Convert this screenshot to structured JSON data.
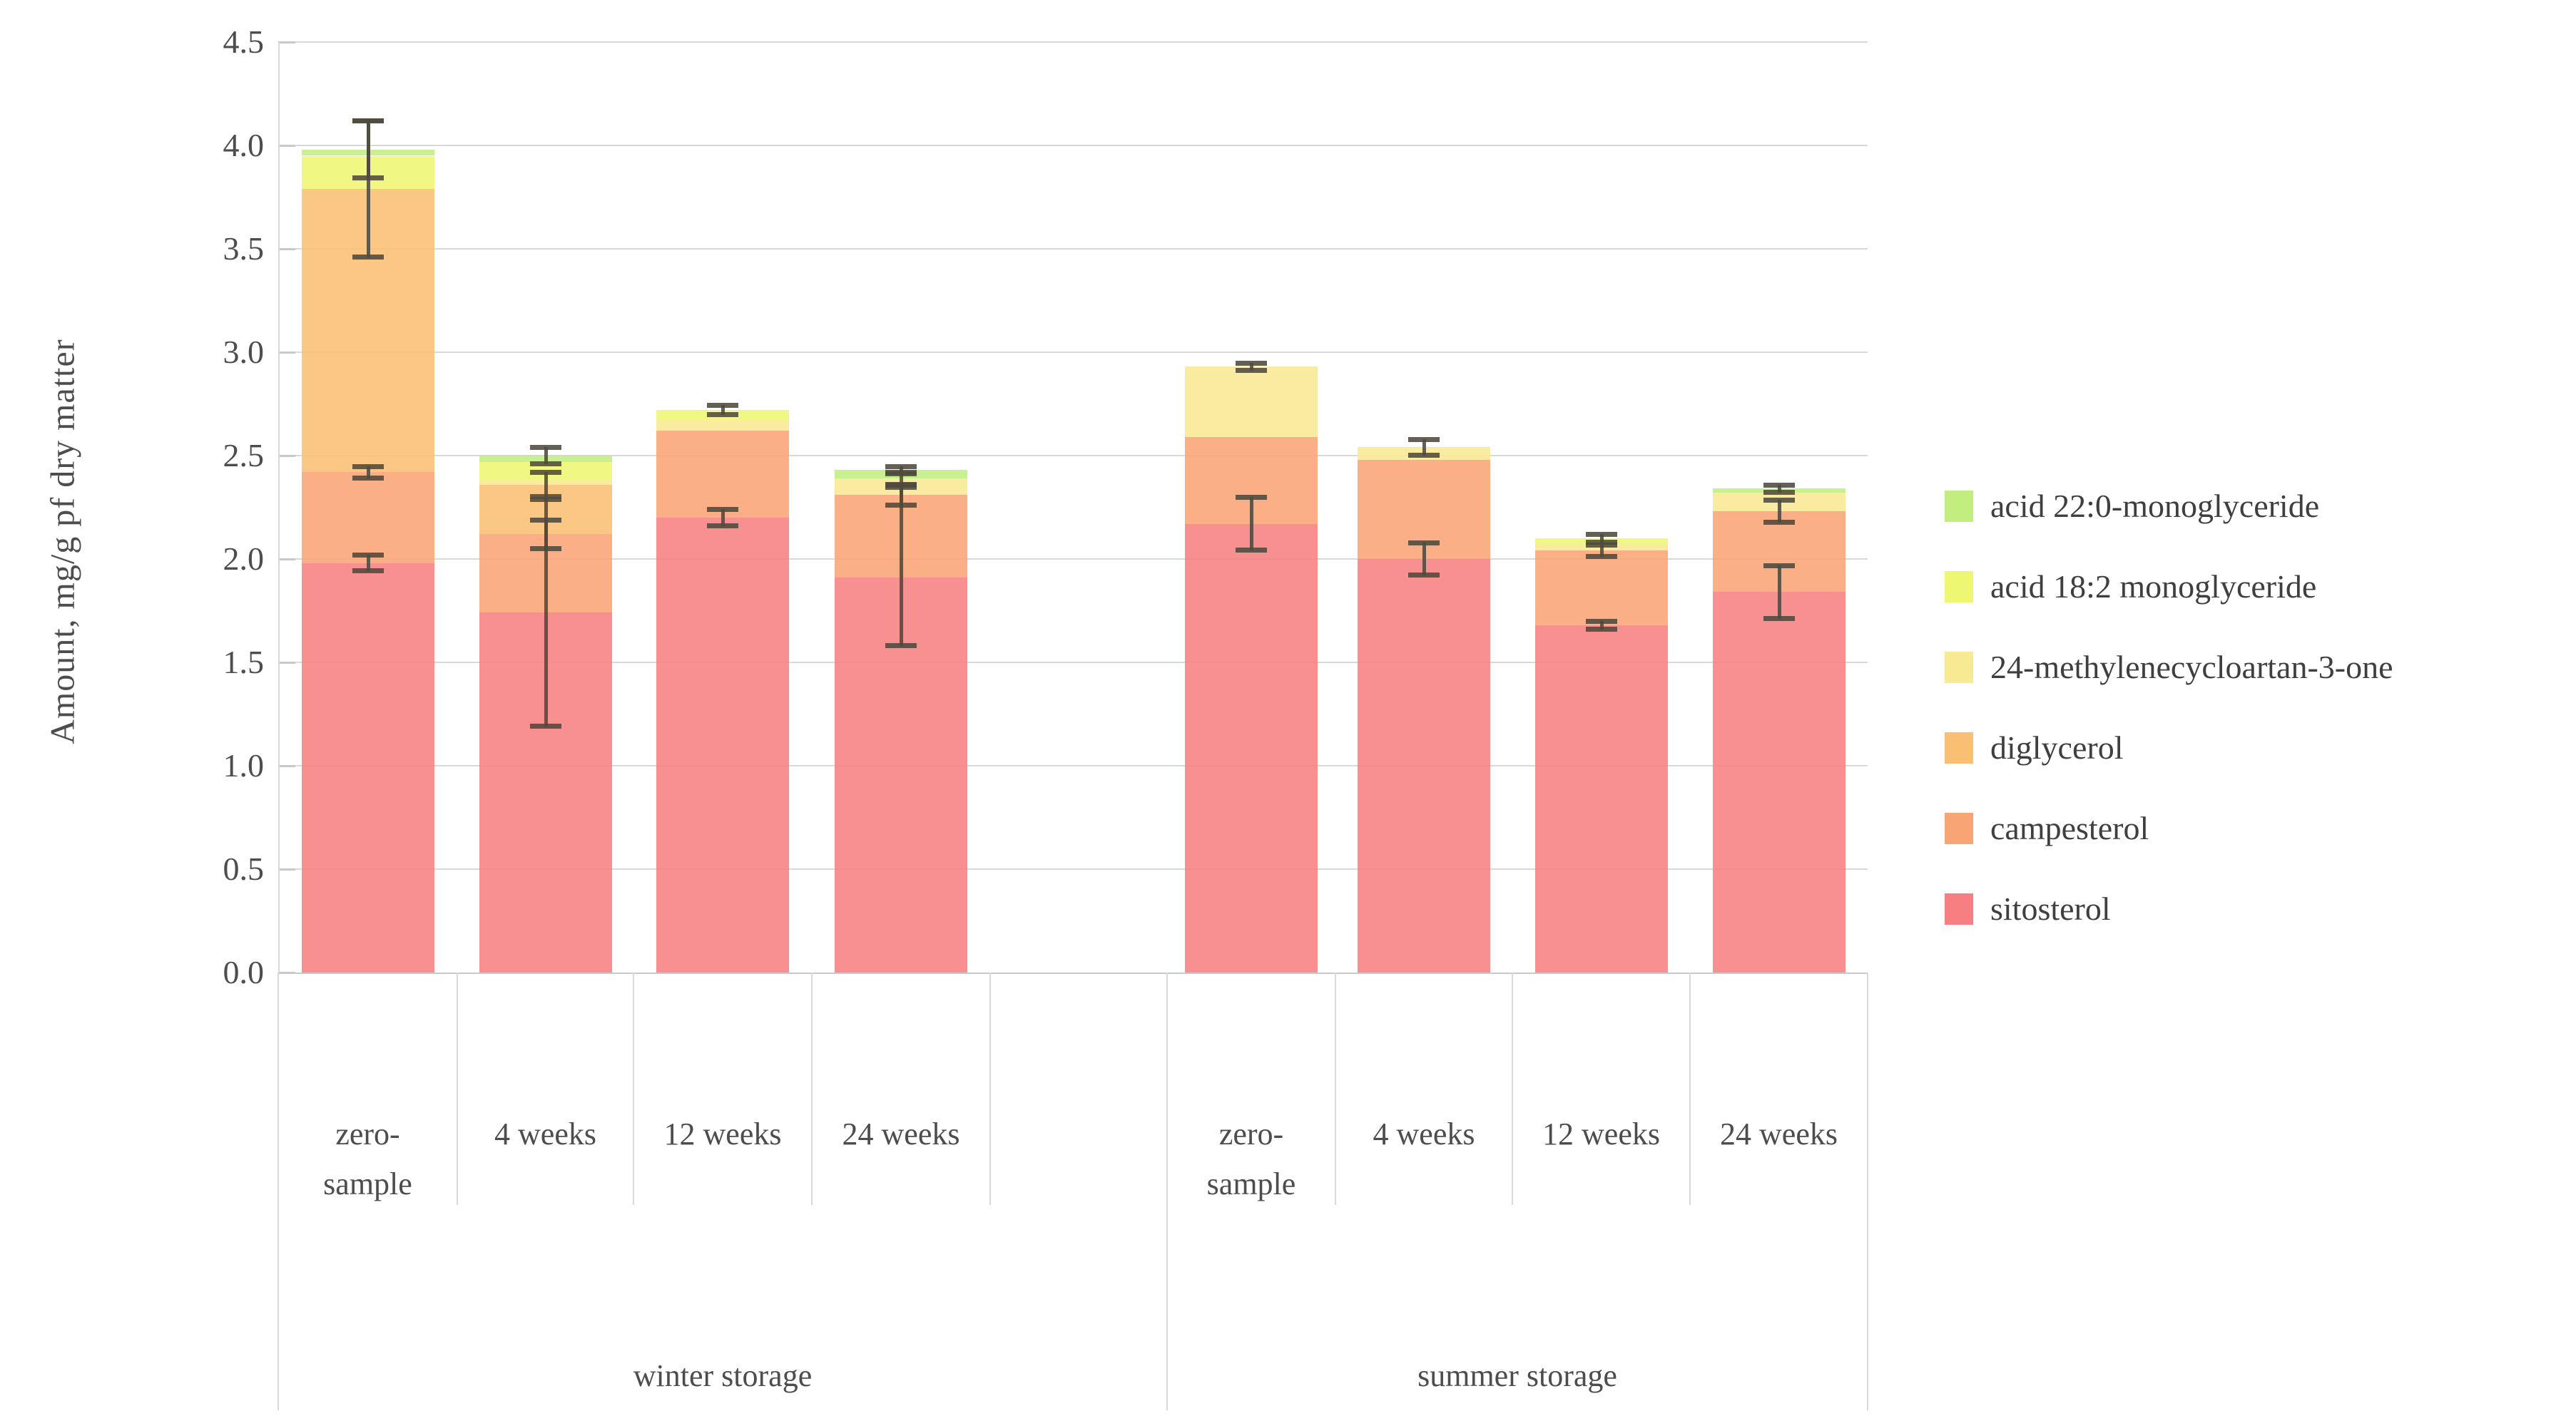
{
  "y_axis": {
    "title": "Amount, mg/g pf dry matter",
    "tick_labels": [
      "0.0",
      "0.5",
      "1.0",
      "1.5",
      "2.0",
      "2.5",
      "3.0",
      "3.5",
      "4.0",
      "4.5"
    ]
  },
  "chart_data": {
    "type": "bar",
    "stacked": true,
    "title": "",
    "xlabel": "",
    "ylabel": "Amount, mg/g pf dry matter",
    "ylim": [
      0,
      4.5
    ],
    "ytick_step": 0.5,
    "grid": true,
    "legend_position": "right",
    "stack_order_bottom_to_top": [
      "sitosterol",
      "campesterol",
      "diglycerol",
      "24-methylenecycloartan-3-one",
      "acid 18:2 monoglyceride",
      "acid 22:0-monoglyceride"
    ],
    "legend": [
      {
        "label": "acid 22:0-monoglyceride",
        "color": "#C2EE7F"
      },
      {
        "label": "acid 18:2 monoglyceride",
        "color": "#EEF772"
      },
      {
        "label": "24-methylenecycloartan-3-one",
        "color": "#F8E993"
      },
      {
        "label": "diglycerol",
        "color": "#FBBF74"
      },
      {
        "label": "campesterol",
        "color": "#F9A475"
      },
      {
        "label": "sitosterol",
        "color": "#F77F82"
      }
    ],
    "bar_fill_rgba": {
      "sitosterol": "rgba(247,127,130,0.88)",
      "campesterol": "rgba(249,164,117,0.88)",
      "diglycerol": "rgba(251,191,116,0.88)",
      "24-methylenecycloartan-3-one": "rgba(248,233,147,0.88)",
      "acid 18:2 monoglyceride": "rgba(238,247,114,0.88)",
      "acid 22:0-monoglyceride": "rgba(194,238,127,0.88)"
    },
    "groups": [
      {
        "label": "winter storage",
        "bars": [
          {
            "label": "zero-sample",
            "label_lines": "zero-\nsample",
            "values": {
              "sitosterol": 1.98,
              "campesterol": 0.44,
              "diglycerol": 1.37,
              "24-methylenecycloartan-3-one": 0,
              "acid 18:2 monoglyceride": 0.16,
              "acid 22:0-monoglyceride": 0.03
            },
            "total": 3.98,
            "error_bars": [
              {
                "center": 1.98,
                "plus": 0.04,
                "minus": 0.04
              },
              {
                "center": 2.42,
                "plus": 0.03,
                "minus": 0.03
              },
              {
                "center": 3.79,
                "plus": 0.33,
                "minus": 0.33
              },
              {
                "center": 3.98,
                "plus": 0.14,
                "minus": 0.14
              }
            ]
          },
          {
            "label": "4 weeks",
            "label_lines": "4 weeks",
            "values": {
              "sitosterol": 1.74,
              "campesterol": 0.38,
              "diglycerol": 0.24,
              "24-methylenecycloartan-3-one": 0.02,
              "acid 18:2 monoglyceride": 0.09,
              "acid 22:0-monoglyceride": 0.03
            },
            "total": 2.5,
            "error_bars": [
              {
                "center": 1.74,
                "plus": 0.55,
                "minus": 0.55
              },
              {
                "center": 2.12,
                "plus": 0.07,
                "minus": 0.07
              },
              {
                "center": 2.36,
                "plus": 0.06,
                "minus": 0.06
              },
              {
                "center": 2.5,
                "plus": 0.04,
                "minus": 0.04
              }
            ]
          },
          {
            "label": "12 weeks",
            "label_lines": "12 weeks",
            "values": {
              "sitosterol": 2.2,
              "campesterol": 0.42,
              "diglycerol": 0,
              "24-methylenecycloartan-3-one": 0.05,
              "acid 18:2 monoglyceride": 0.05,
              "acid 22:0-monoglyceride": 0
            },
            "total": 2.72,
            "error_bars": [
              {
                "center": 2.2,
                "plus": 0.04,
                "minus": 0.04
              },
              {
                "center": 2.72,
                "plus": 0.025,
                "minus": 0.025
              }
            ]
          },
          {
            "label": "24 weeks",
            "label_lines": "24 weeks",
            "values": {
              "sitosterol": 1.91,
              "campesterol": 0.4,
              "diglycerol": 0,
              "24-methylenecycloartan-3-one": 0.08,
              "acid 18:2 monoglyceride": 0,
              "acid 22:0-monoglyceride": 0.04
            },
            "total": 2.43,
            "error_bars": [
              {
                "center": 1.91,
                "plus": 0.44,
                "minus": 0.33
              },
              {
                "center": 2.31,
                "plus": 0.05,
                "minus": 0.05
              },
              {
                "center": 2.39,
                "plus": 0.03,
                "minus": 0.03
              },
              {
                "center": 2.43,
                "plus": 0.02,
                "minus": 0.02
              }
            ]
          }
        ]
      },
      {
        "label": "summer storage",
        "bars": [
          {
            "label": "zero-sample",
            "label_lines": "zero-\nsample",
            "values": {
              "sitosterol": 2.17,
              "campesterol": 0.42,
              "diglycerol": 0,
              "24-methylenecycloartan-3-one": 0.34,
              "acid 18:2 monoglyceride": 0,
              "acid 22:0-monoglyceride": 0
            },
            "total": 2.93,
            "error_bars": [
              {
                "center": 2.17,
                "plus": 0.13,
                "minus": 0.13
              },
              {
                "center": 2.93,
                "plus": 0.02,
                "minus": 0.02
              }
            ]
          },
          {
            "label": "4 weeks",
            "label_lines": "4 weeks",
            "values": {
              "sitosterol": 2.0,
              "campesterol": 0.48,
              "diglycerol": 0,
              "24-methylenecycloartan-3-one": 0.06,
              "acid 18:2 monoglyceride": 0,
              "acid 22:0-monoglyceride": 0
            },
            "total": 2.54,
            "error_bars": [
              {
                "center": 2.0,
                "plus": 0.08,
                "minus": 0.08
              },
              {
                "center": 2.54,
                "plus": 0.04,
                "minus": 0.04
              }
            ]
          },
          {
            "label": "12 weeks",
            "label_lines": "12 weeks",
            "values": {
              "sitosterol": 1.68,
              "campesterol": 0.36,
              "diglycerol": 0,
              "24-methylenecycloartan-3-one": 0.03,
              "acid 18:2 monoglyceride": 0.03,
              "acid 22:0-monoglyceride": 0
            },
            "total": 2.1,
            "error_bars": [
              {
                "center": 1.68,
                "plus": 0.02,
                "minus": 0.02
              },
              {
                "center": 2.04,
                "plus": 0.03,
                "minus": 0.03
              },
              {
                "center": 2.1,
                "plus": 0.02,
                "minus": 0.02
              }
            ]
          },
          {
            "label": "24 weeks",
            "label_lines": "24 weeks",
            "values": {
              "sitosterol": 1.84,
              "campesterol": 0.39,
              "diglycerol": 0,
              "24-methylenecycloartan-3-one": 0.09,
              "acid 18:2 monoglyceride": 0,
              "acid 22:0-monoglyceride": 0.02
            },
            "total": 2.34,
            "error_bars": [
              {
                "center": 1.84,
                "plus": 0.13,
                "minus": 0.13
              },
              {
                "center": 2.23,
                "plus": 0.055,
                "minus": 0.055
              },
              {
                "center": 2.34,
                "plus": 0.02,
                "minus": 0.02
              }
            ]
          }
        ]
      }
    ]
  },
  "colors": {
    "background": "#FFFFFF",
    "gridline": "#D9D9D9",
    "axis_line": "#C9C9C9",
    "separator": "#D9D9D9",
    "error_bar": "#4E4A3E",
    "tick_text": "#4D4D4D",
    "label_text": "#4D4D4D",
    "legend_text": "#3F3F3F"
  }
}
